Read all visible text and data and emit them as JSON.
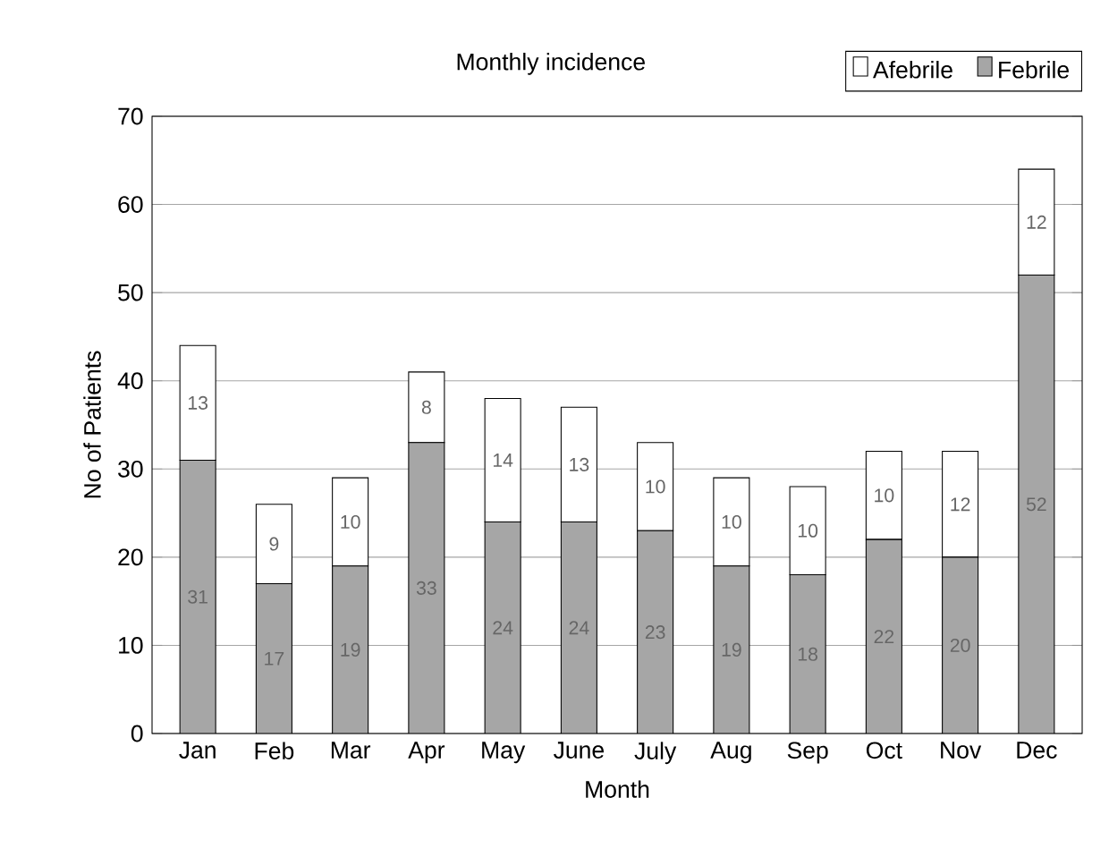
{
  "chart_data": {
    "type": "bar",
    "stacked": true,
    "xlabel": "Month",
    "ylabel": "No of Patients",
    "legend_title": "Monthly incidence",
    "categories": [
      "Jan",
      "Feb",
      "Mar",
      "Apr",
      "May",
      "June",
      "July",
      "Aug",
      "Sep",
      "Oct",
      "Nov",
      "Dec"
    ],
    "series": [
      {
        "name": "Febrile",
        "color": "#a6a6a6",
        "values": [
          31,
          17,
          19,
          33,
          24,
          24,
          23,
          19,
          18,
          22,
          20,
          52
        ]
      },
      {
        "name": "Afebrile",
        "color": "#ffffff",
        "values": [
          13,
          9,
          10,
          8,
          14,
          13,
          10,
          10,
          10,
          10,
          12,
          12
        ]
      }
    ],
    "ylim": [
      0,
      70
    ],
    "yticks": [
      0,
      10,
      20,
      30,
      40,
      50,
      60,
      70
    ],
    "grid": "y",
    "legend": "top right",
    "data_labels": true
  }
}
